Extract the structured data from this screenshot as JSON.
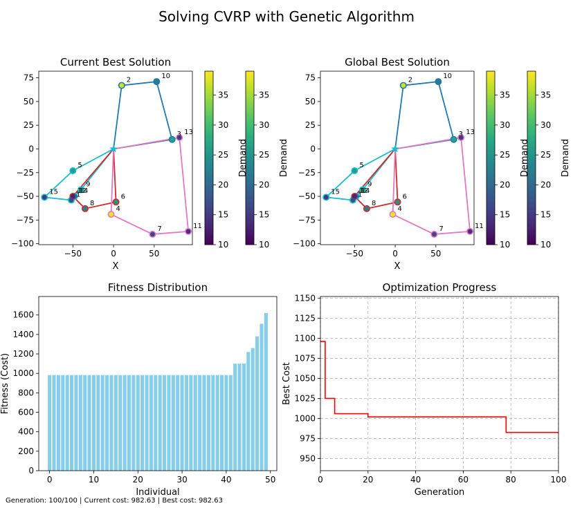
{
  "figure": {
    "title": "Solving CVRP with Genetic Algorithm",
    "status_line": "Generation: 100/100 | Current cost: 982.63 | Best cost: 982.63"
  },
  "chart_data": [
    {
      "type": "scatter",
      "title": "Current Best Solution",
      "xlabel": "X",
      "ylabel": "",
      "xlim": [
        -92,
        97
      ],
      "ylim": [
        -101,
        82
      ],
      "xticks": [
        -50,
        0,
        50
      ],
      "yticks": [
        -100,
        -75,
        -50,
        -25,
        0,
        25,
        50,
        75
      ],
      "colorbar": {
        "label": "Demand",
        "min": 10,
        "max": 39,
        "ticks": [
          10,
          15,
          20,
          25,
          30,
          35
        ],
        "count": 2,
        "cmap": "viridis"
      },
      "depot": {
        "x": 0,
        "y": 0,
        "color": "#17becf"
      },
      "nodes": [
        {
          "id": "2",
          "x": 10,
          "y": 67,
          "demand": 37
        },
        {
          "id": "10",
          "x": 53,
          "y": 71,
          "demand": 22
        },
        {
          "id": "3",
          "x": 72,
          "y": 10,
          "demand": 27
        },
        {
          "id": "13",
          "x": 81,
          "y": 12,
          "demand": 15
        },
        {
          "id": "5",
          "x": -50,
          "y": -23,
          "demand": 26
        },
        {
          "id": "9",
          "x": -40,
          "y": -43,
          "demand": 27
        },
        {
          "id": "14",
          "x": -48,
          "y": -50,
          "demand": 19
        },
        {
          "id": "12",
          "x": -50,
          "y": -50,
          "demand": 13
        },
        {
          "id": "1",
          "x": -52,
          "y": -54,
          "demand": 17
        },
        {
          "id": "15",
          "x": -85,
          "y": -51,
          "demand": 15
        },
        {
          "id": "8",
          "x": -35,
          "y": -63,
          "demand": 23
        },
        {
          "id": "6",
          "x": 3,
          "y": -56,
          "demand": 25
        },
        {
          "id": "4",
          "x": -3,
          "y": -69,
          "demand": 38
        },
        {
          "id": "7",
          "x": 48,
          "y": -90,
          "demand": 16
        },
        {
          "id": "11",
          "x": 92,
          "y": -87,
          "demand": 14
        }
      ],
      "routes": [
        {
          "color": "#1f77b4",
          "stops": [
            "2",
            "10",
            "3"
          ]
        },
        {
          "color": "#17becf",
          "stops": [
            "5",
            "15",
            "1",
            "14",
            "9"
          ]
        },
        {
          "color": "#d62728",
          "stops": [
            "12",
            "8",
            "6"
          ]
        },
        {
          "color": "#e377c2",
          "stops": [
            "13",
            "11",
            "7",
            "4"
          ]
        }
      ]
    },
    {
      "type": "scatter",
      "title": "Global Best Solution",
      "xlabel": "X",
      "ylabel": "",
      "xlim": [
        -92,
        97
      ],
      "ylim": [
        -101,
        82
      ],
      "xticks": [
        -50,
        0,
        50
      ],
      "yticks": [
        -100,
        -75,
        -50,
        -25,
        0,
        25,
        50,
        75
      ],
      "colorbar": {
        "label": "Demand",
        "min": 10,
        "max": 39,
        "ticks": [
          10,
          15,
          20,
          25,
          30,
          35
        ],
        "count": 2,
        "cmap": "viridis"
      },
      "depot": {
        "x": 0,
        "y": 0,
        "color": "#17becf"
      },
      "nodes": [
        {
          "id": "2",
          "x": 10,
          "y": 67,
          "demand": 37
        },
        {
          "id": "10",
          "x": 53,
          "y": 71,
          "demand": 22
        },
        {
          "id": "3",
          "x": 72,
          "y": 10,
          "demand": 27
        },
        {
          "id": "13",
          "x": 81,
          "y": 12,
          "demand": 15
        },
        {
          "id": "5",
          "x": -50,
          "y": -23,
          "demand": 26
        },
        {
          "id": "9",
          "x": -40,
          "y": -43,
          "demand": 27
        },
        {
          "id": "14",
          "x": -48,
          "y": -50,
          "demand": 19
        },
        {
          "id": "12",
          "x": -50,
          "y": -50,
          "demand": 13
        },
        {
          "id": "1",
          "x": -52,
          "y": -54,
          "demand": 17
        },
        {
          "id": "15",
          "x": -85,
          "y": -51,
          "demand": 15
        },
        {
          "id": "8",
          "x": -35,
          "y": -63,
          "demand": 23
        },
        {
          "id": "6",
          "x": 3,
          "y": -56,
          "demand": 25
        },
        {
          "id": "4",
          "x": -3,
          "y": -69,
          "demand": 38
        },
        {
          "id": "7",
          "x": 48,
          "y": -90,
          "demand": 16
        },
        {
          "id": "11",
          "x": 92,
          "y": -87,
          "demand": 14
        }
      ],
      "routes": [
        {
          "color": "#1f77b4",
          "stops": [
            "2",
            "10",
            "3"
          ]
        },
        {
          "color": "#17becf",
          "stops": [
            "5",
            "15",
            "1",
            "14",
            "9"
          ]
        },
        {
          "color": "#d62728",
          "stops": [
            "12",
            "8",
            "6"
          ]
        },
        {
          "color": "#e377c2",
          "stops": [
            "13",
            "11",
            "7",
            "4"
          ]
        }
      ]
    },
    {
      "type": "bar",
      "title": "Fitness Distribution",
      "xlabel": "Individual",
      "ylabel": "Fitness (Cost)",
      "xlim": [
        -2.45,
        51.45
      ],
      "ylim": [
        0,
        1790
      ],
      "xticks": [
        0,
        10,
        20,
        30,
        40,
        50
      ],
      "yticks": [
        0,
        200,
        400,
        600,
        800,
        1000,
        1200,
        1400,
        1600
      ],
      "color": "#87ceeb",
      "values": [
        982.63,
        982.63,
        982.63,
        982.63,
        982.63,
        982.63,
        982.63,
        982.63,
        982.63,
        982.63,
        982.63,
        982.63,
        982.63,
        982.63,
        982.63,
        982.63,
        982.63,
        982.63,
        982.63,
        982.63,
        982.63,
        982.63,
        982.63,
        982.63,
        982.63,
        982.63,
        982.63,
        982.63,
        982.63,
        982.63,
        982.63,
        982.63,
        982.63,
        982.63,
        982.63,
        982.63,
        982.63,
        982.63,
        982.63,
        982.63,
        982.63,
        982.63,
        1100,
        1100,
        1100,
        1220,
        1260,
        1380,
        1510,
        1620
      ]
    },
    {
      "type": "line",
      "title": "Optimization Progress",
      "xlabel": "Generation",
      "ylabel": "Best Cost",
      "xlim": [
        0,
        100
      ],
      "ylim": [
        935,
        1152
      ],
      "xticks": [
        0,
        20,
        40,
        60,
        80,
        100
      ],
      "yticks": [
        950,
        975,
        1000,
        1025,
        1050,
        1075,
        1100,
        1125,
        1150
      ],
      "grid": true,
      "color": "#ff0000",
      "x": [
        0,
        1,
        1,
        2,
        2,
        5,
        5,
        6,
        6,
        19,
        19,
        20,
        20,
        77,
        77,
        78,
        78,
        100
      ],
      "y": [
        1096,
        1096,
        1096,
        1096,
        1025,
        1025,
        1025,
        1025,
        1006,
        1006,
        1006,
        1006,
        1002,
        1002,
        1002,
        1002,
        982.63,
        982.63
      ]
    }
  ]
}
